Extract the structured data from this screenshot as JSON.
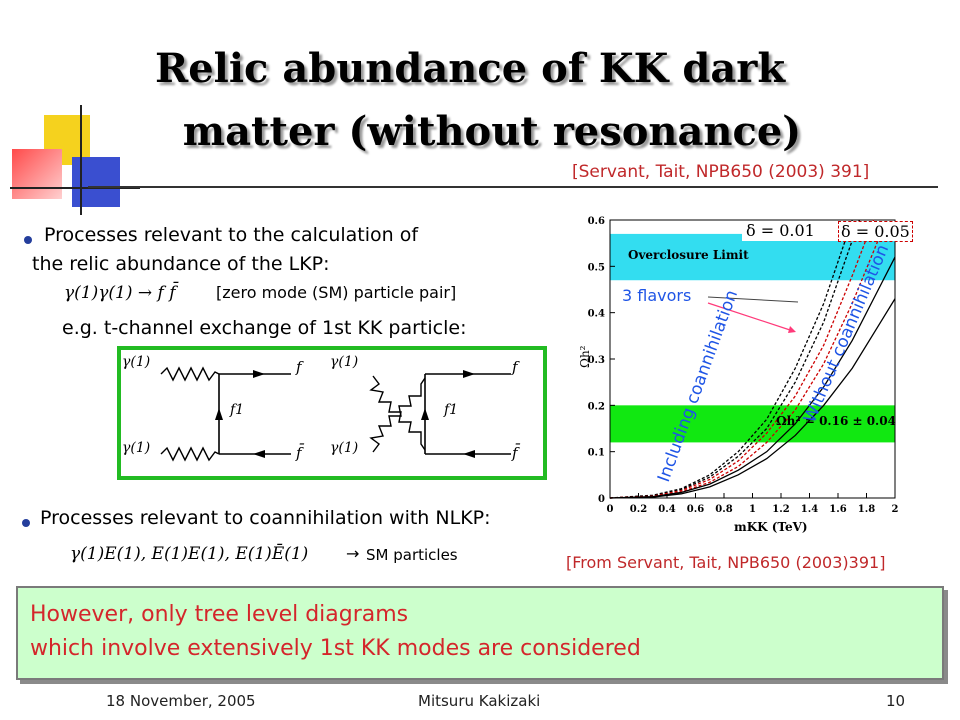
{
  "slide": {
    "title_line1": "Relic abundance of KK dark",
    "title_line2": "matter (without resonance)",
    "ref_top": "[Servant, Tait, NPB650 (2003) 391]",
    "ref_bottom": "[From Servant, Tait, NPB650 (2003)391]"
  },
  "bullet1": {
    "line1": "Processes relevant to the calculation of",
    "line2": "the relic abundance of the LKP:",
    "formula": "γ(1)γ(1) → f f̄",
    "formula_note": "[zero mode (SM) particle pair]",
    "example": "e.g. t-channel exchange of 1st KK particle:"
  },
  "feynman": {
    "photon": "γ(1)",
    "fermion": "f",
    "antifermion": "f̄",
    "kk_fermion": "f1"
  },
  "bullet2": {
    "text": "Processes relevant to coannihilation with NLKP:",
    "formula": "γ(1)E(1), E(1)E(1), E(1)Ē(1)",
    "result": "SM particles"
  },
  "note": {
    "line1": "However, only tree level diagrams",
    "line2": "which involve extensively 1st KK modes are considered"
  },
  "footer": {
    "date": "18 November, 2005",
    "author": "Mitsuru Kakizaki",
    "page": "10"
  },
  "plot_labels": {
    "delta1": "δ = 0.01",
    "delta2": "δ = 0.05",
    "overclosure": "Overclosure Limit",
    "omega_band": "Ωh² = 0.16 ± 0.04",
    "flavors": "3 flavors",
    "including": "Including coannihilation",
    "without": "Without coannihilation",
    "ylabel": "Ωh²",
    "xlabel": "mKK (TeV)"
  },
  "chart_data": {
    "type": "line",
    "xlabel": "mKK (TeV)",
    "ylabel": "Ωh²",
    "xlim": [
      0,
      2
    ],
    "ylim": [
      0,
      0.6
    ],
    "x_ticks": [
      "0",
      "0.2",
      "0.4",
      "0.6",
      "0.8",
      "1",
      "1.2",
      "1.4",
      "1.6",
      "1.8",
      "2"
    ],
    "y_ticks": [
      "0",
      "0.1",
      "0.2",
      "0.3",
      "0.4",
      "0.5",
      "0.6"
    ],
    "bands": [
      {
        "label": "Overclosure Limit",
        "ymin": 0.47,
        "ymax": 0.57,
        "color": "#33ddf0"
      },
      {
        "label": "Ωh² = 0.16 ± 0.04",
        "ymin": 0.12,
        "ymax": 0.2,
        "color": "#11e811"
      }
    ],
    "series": [
      {
        "color": "#000000",
        "style": "dashed",
        "x": [
          0,
          0.3,
          0.5,
          0.7,
          0.9,
          1.1,
          1.3,
          1.5,
          1.7
        ],
        "y": [
          0,
          0.006,
          0.02,
          0.05,
          0.1,
          0.17,
          0.28,
          0.42,
          0.6
        ]
      },
      {
        "color": "#000000",
        "style": "dashed",
        "x": [
          0,
          0.3,
          0.5,
          0.7,
          0.9,
          1.1,
          1.3,
          1.5,
          1.75
        ],
        "y": [
          0,
          0.005,
          0.018,
          0.045,
          0.09,
          0.15,
          0.25,
          0.38,
          0.6
        ]
      },
      {
        "color": "#cc0000",
        "style": "dashed",
        "x": [
          0,
          0.3,
          0.5,
          0.7,
          0.9,
          1.1,
          1.3,
          1.5,
          1.7,
          1.85
        ],
        "y": [
          0,
          0.004,
          0.016,
          0.04,
          0.08,
          0.14,
          0.22,
          0.33,
          0.48,
          0.6
        ]
      },
      {
        "color": "#cc0000",
        "style": "dashed",
        "x": [
          0,
          0.3,
          0.5,
          0.7,
          0.9,
          1.1,
          1.3,
          1.5,
          1.7,
          1.9
        ],
        "y": [
          0,
          0.003,
          0.013,
          0.034,
          0.068,
          0.12,
          0.19,
          0.29,
          0.42,
          0.57
        ]
      },
      {
        "color": "#000000",
        "style": "solid",
        "x": [
          0,
          0.3,
          0.5,
          0.7,
          0.9,
          1.1,
          1.3,
          1.5,
          1.7,
          1.9,
          2.0
        ],
        "y": [
          0,
          0.003,
          0.012,
          0.03,
          0.06,
          0.1,
          0.16,
          0.24,
          0.34,
          0.46,
          0.52
        ]
      },
      {
        "color": "#000000",
        "style": "solid",
        "x": [
          0,
          0.3,
          0.5,
          0.7,
          0.9,
          1.1,
          1.3,
          1.5,
          1.7,
          1.9,
          2.0
        ],
        "y": [
          0,
          0.002,
          0.009,
          0.024,
          0.05,
          0.085,
          0.135,
          0.2,
          0.28,
          0.38,
          0.43
        ]
      }
    ]
  }
}
